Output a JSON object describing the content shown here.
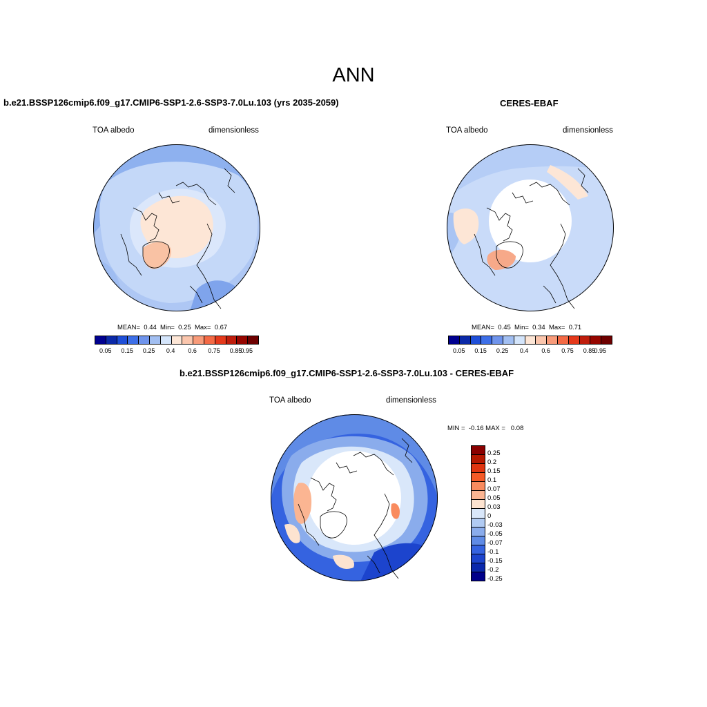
{
  "main_title": "ANN",
  "panel1": {
    "title": "b.e21.BSSP126cmip6.f09_g17.CMIP6-SSP1-2.6-SSP3-7.0Lu.103 (yrs 2035-2059)",
    "left_label": "TOA albedo",
    "right_label": "dimensionless",
    "stats": "MEAN=  0.44  Min=  0.25  Max=  0.67"
  },
  "panel2": {
    "title": "CERES-EBAF",
    "left_label": "TOA albedo",
    "right_label": "dimensionless",
    "stats": "MEAN=  0.45  Min=  0.34  Max=  0.71"
  },
  "panel3": {
    "title": "b.e21.BSSP126cmip6.f09_g17.CMIP6-SSP1-2.6-SSP3-7.0Lu.103 - CERES-EBAF",
    "left_label": "TOA albedo",
    "right_label": "dimensionless",
    "stats": "MIN =  -0.16 MAX =   0.08"
  },
  "abs_colorbar": {
    "colors": [
      "#00008f",
      "#0b29a8",
      "#1f4fd8",
      "#3d6fe8",
      "#6f94ec",
      "#a2bff2",
      "#d4e5fb",
      "#fde6d6",
      "#fbc6ad",
      "#f89b7a",
      "#f46a45",
      "#e5391b",
      "#bf1d0c",
      "#960600",
      "#6e0000"
    ],
    "labels": [
      "0.05",
      "0.15",
      "0.25",
      "0.4",
      "0.6",
      "0.75",
      "0.85",
      "0.95"
    ]
  },
  "diff_colorbar": {
    "colors": [
      "#8a0000",
      "#b51800",
      "#e03510",
      "#f55a27",
      "#f98b5e",
      "#fbb592",
      "#fde3d0",
      "#d9e7fa",
      "#b1cbf3",
      "#8aacec",
      "#5f8be6",
      "#3563e0",
      "#1c44cd",
      "#0a28ac",
      "#00008a"
    ],
    "labels": [
      "0.25",
      "0.2",
      "0.15",
      "0.1",
      "0.07",
      "0.05",
      "0.03",
      "0",
      "-0.03",
      "-0.05",
      "-0.07",
      "-0.1",
      "-0.15",
      "-0.2",
      "-0.25"
    ]
  }
}
